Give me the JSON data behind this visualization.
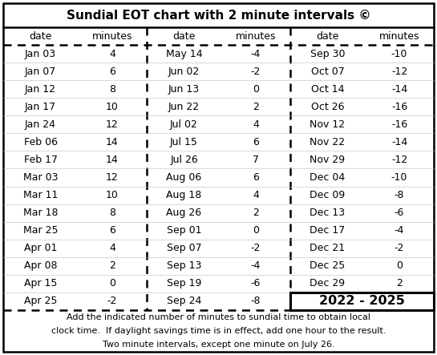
{
  "title": "Sundial EOT chart with 2 minute intervals ©",
  "col1": [
    [
      "Jan 03",
      "4"
    ],
    [
      "Jan 07",
      "6"
    ],
    [
      "Jan 12",
      "8"
    ],
    [
      "Jan 17",
      "10"
    ],
    [
      "Jan 24",
      "12"
    ],
    [
      "Feb 06",
      "14"
    ],
    [
      "Feb 17",
      "14"
    ],
    [
      "Mar 03",
      "12"
    ],
    [
      "Mar 11",
      "10"
    ],
    [
      "Mar 18",
      "8"
    ],
    [
      "Mar 25",
      "6"
    ],
    [
      "Apr 01",
      "4"
    ],
    [
      "Apr 08",
      "2"
    ],
    [
      "Apr 15",
      "0"
    ],
    [
      "Apr 25",
      "-2"
    ]
  ],
  "col2": [
    [
      "May 14",
      "-4"
    ],
    [
      "Jun 02",
      "-2"
    ],
    [
      "Jun 13",
      "0"
    ],
    [
      "Jun 22",
      "2"
    ],
    [
      "Jul 02",
      "4"
    ],
    [
      "Jul 15",
      "6"
    ],
    [
      "Jul 26",
      "7"
    ],
    [
      "Aug 06",
      "6"
    ],
    [
      "Aug 18",
      "4"
    ],
    [
      "Aug 26",
      "2"
    ],
    [
      "Sep 01",
      "0"
    ],
    [
      "Sep 07",
      "-2"
    ],
    [
      "Sep 13",
      "-4"
    ],
    [
      "Sep 19",
      "-6"
    ],
    [
      "Sep 24",
      "-8"
    ]
  ],
  "col3": [
    [
      "Sep 30",
      "-10"
    ],
    [
      "Oct 07",
      "-12"
    ],
    [
      "Oct 14",
      "-14"
    ],
    [
      "Oct 26",
      "-16"
    ],
    [
      "Nov 12",
      "-16"
    ],
    [
      "Nov 22",
      "-14"
    ],
    [
      "Nov 29",
      "-12"
    ],
    [
      "Dec 04",
      "-10"
    ],
    [
      "Dec 09",
      "-8"
    ],
    [
      "Dec 13",
      "-6"
    ],
    [
      "Dec 17",
      "-4"
    ],
    [
      "Dec 21",
      "-2"
    ],
    [
      "Dec 25",
      "0"
    ],
    [
      "Dec 29",
      "2"
    ],
    [
      "2022 - 2025",
      null
    ]
  ],
  "footer_lines": [
    "Add the indicated number of minutes to sundial time to obtain local",
    "clock time.  If daylight savings time is in effect, add one hour to the result.",
    "Two minute intervals, except one minute on July 26."
  ],
  "bg_color": "#ffffff"
}
